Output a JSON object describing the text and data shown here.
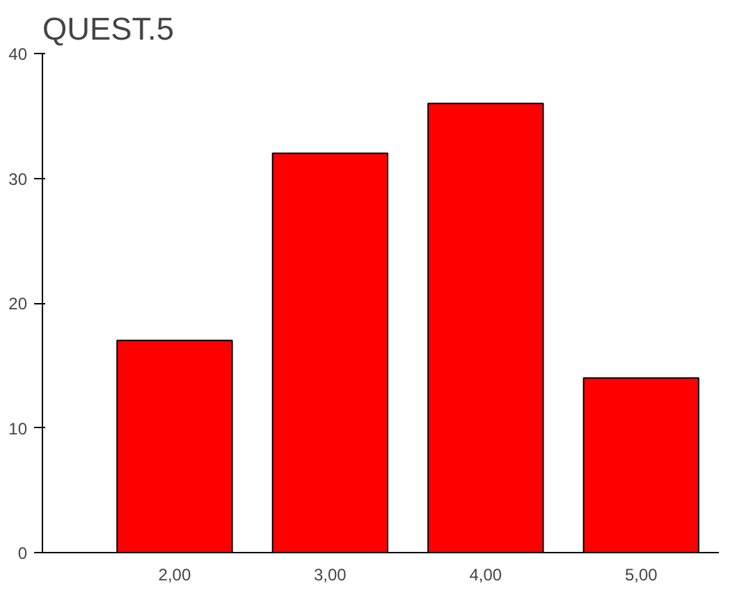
{
  "chart_data": {
    "type": "bar",
    "title": "QUEST.5",
    "categories": [
      "2,00",
      "3,00",
      "4,00",
      "5,00"
    ],
    "values": [
      17,
      32,
      36,
      14
    ],
    "color": "#ff0000",
    "ylim": [
      0,
      40
    ],
    "yticks": [
      0,
      10,
      20,
      30,
      40
    ],
    "grid": false
  }
}
